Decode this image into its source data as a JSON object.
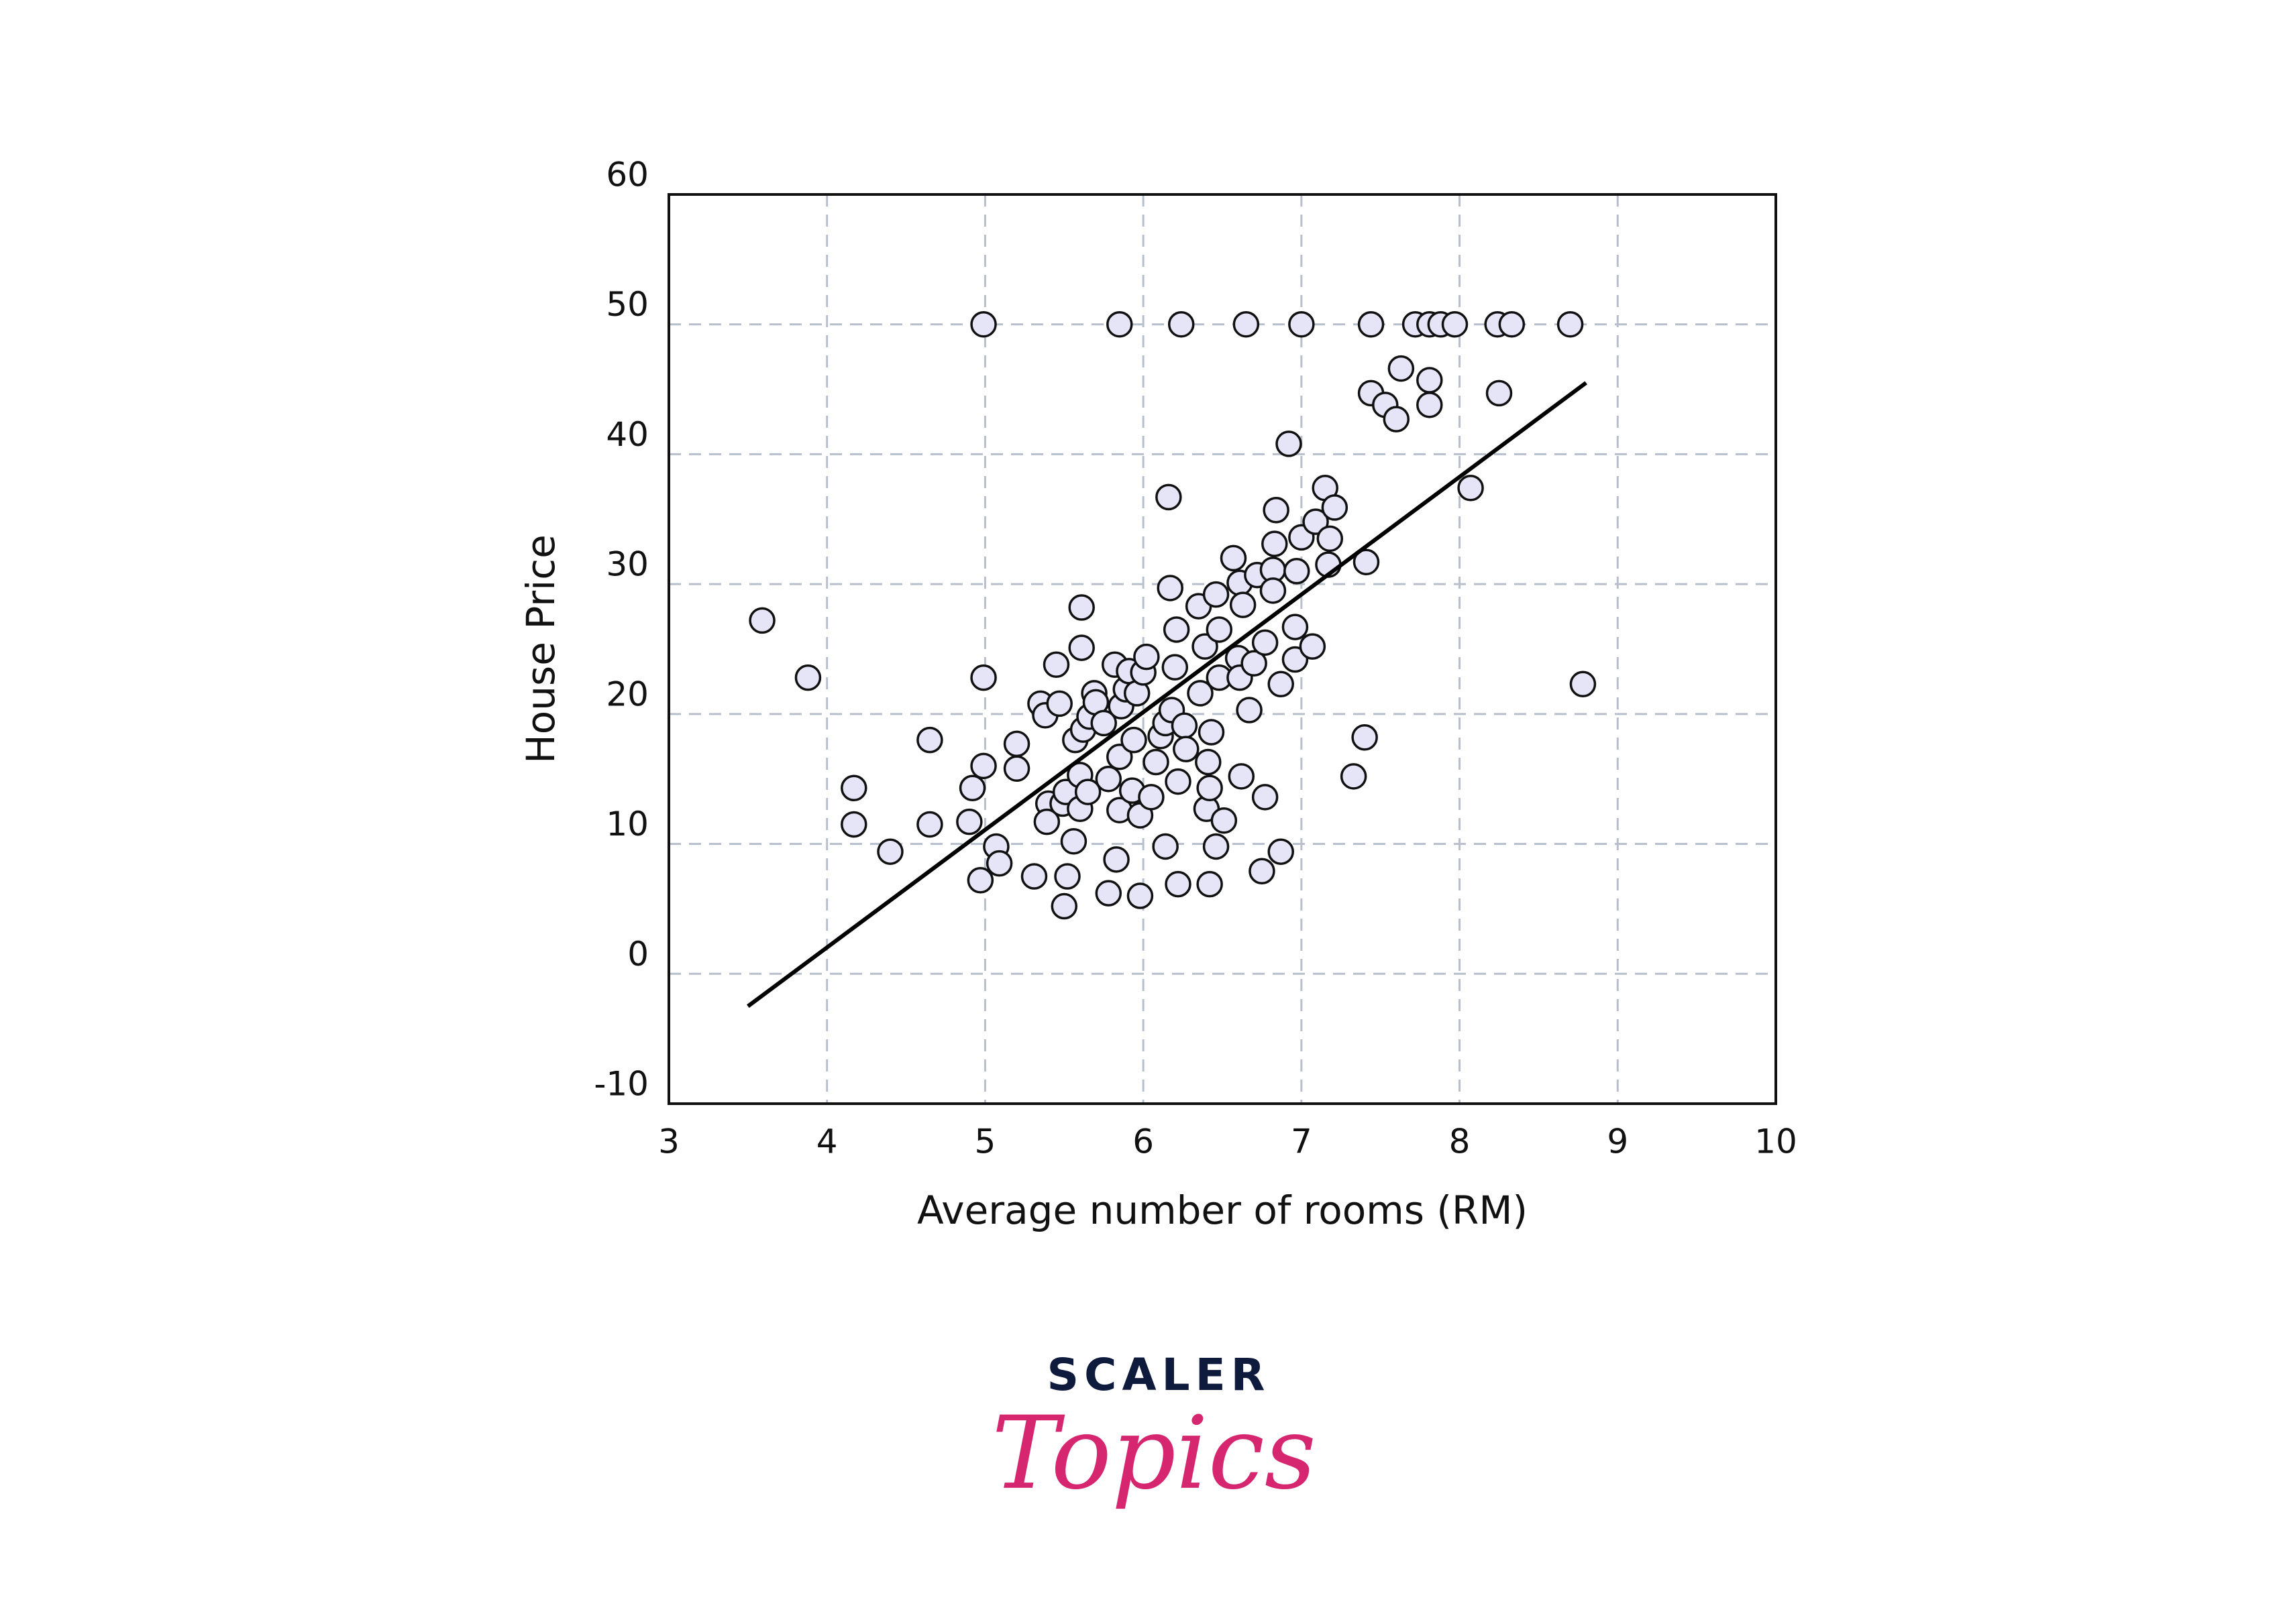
{
  "chart_data": {
    "type": "scatter",
    "xlabel": "Average number of rooms (RM)",
    "ylabel": "House Price",
    "xlim": [
      3,
      10
    ],
    "ylim": [
      -10,
      60
    ],
    "xticks": [
      3,
      4,
      5,
      6,
      7,
      8,
      9,
      10
    ],
    "yticks": [
      -10,
      0,
      10,
      20,
      30,
      40,
      50,
      60
    ],
    "grid": true,
    "series": [
      {
        "type": "scatter",
        "color": "#e6e4f7",
        "x": [
          4.99,
          5.85,
          6.24,
          6.65,
          7.0,
          7.44,
          7.72,
          7.81,
          7.88,
          7.97,
          8.24,
          8.33,
          8.7,
          3.59,
          3.88,
          4.17,
          4.17,
          4.4,
          4.65,
          4.65,
          4.9,
          4.92,
          4.99,
          4.99,
          4.97,
          5.07,
          5.09,
          5.2,
          5.2,
          5.31,
          5.35,
          5.38,
          5.4,
          5.39,
          5.45,
          5.47,
          5.49,
          5.51,
          5.52,
          5.5,
          5.56,
          5.57,
          5.6,
          5.6,
          5.61,
          5.61,
          5.62,
          5.65,
          5.66,
          5.69,
          5.7,
          5.75,
          5.78,
          5.78,
          5.82,
          5.83,
          5.85,
          5.85,
          5.86,
          5.89,
          5.91,
          5.93,
          5.94,
          5.96,
          5.98,
          5.98,
          6.0,
          6.02,
          6.05,
          6.08,
          6.11,
          6.14,
          6.14,
          6.16,
          6.17,
          6.18,
          6.2,
          6.21,
          6.22,
          6.22,
          6.26,
          6.27,
          6.35,
          6.36,
          6.39,
          6.4,
          6.41,
          6.42,
          6.42,
          6.43,
          6.46,
          6.46,
          6.48,
          6.48,
          6.51,
          6.57,
          6.6,
          6.61,
          6.61,
          6.63,
          6.62,
          6.67,
          6.7,
          6.72,
          6.75,
          6.77,
          6.77,
          6.82,
          6.82,
          6.83,
          6.84,
          6.87,
          6.87,
          6.92,
          6.96,
          6.96,
          6.97,
          7.0,
          7.07,
          7.09,
          7.15,
          7.17,
          7.18,
          7.21,
          7.33,
          7.4,
          7.41,
          7.44,
          7.53,
          7.6,
          7.63,
          7.81,
          7.81,
          8.07,
          8.25,
          8.78
        ],
        "values": [
          50,
          50,
          50,
          50,
          50,
          50,
          50,
          50,
          50,
          50,
          50,
          50,
          50,
          27.2,
          22.8,
          14.3,
          11.5,
          9.4,
          18.0,
          11.5,
          11.7,
          14.3,
          22.8,
          16.0,
          7.2,
          9.8,
          8.5,
          17.7,
          15.8,
          7.5,
          20.8,
          19.9,
          13.1,
          11.7,
          23.8,
          20.8,
          13.1,
          14.0,
          7.5,
          5.2,
          10.2,
          18.0,
          12.7,
          15.3,
          25.1,
          28.2,
          18.8,
          14.0,
          19.8,
          21.6,
          20.9,
          19.3,
          15.0,
          6.2,
          23.8,
          8.8,
          16.7,
          12.6,
          20.6,
          21.9,
          23.3,
          14.1,
          18.0,
          21.6,
          12.2,
          6.0,
          23.2,
          24.4,
          13.6,
          16.3,
          18.3,
          19.3,
          9.8,
          36.7,
          29.7,
          20.3,
          23.6,
          26.5,
          14.8,
          6.9,
          19.1,
          17.3,
          28.3,
          21.6,
          25.2,
          12.7,
          16.3,
          14.3,
          6.9,
          18.6,
          29.2,
          9.8,
          22.8,
          26.5,
          11.8,
          32.0,
          24.3,
          22.8,
          30.1,
          28.4,
          15.2,
          20.3,
          23.9,
          30.7,
          7.9,
          25.5,
          13.6,
          31.1,
          29.5,
          33.1,
          35.7,
          22.3,
          9.4,
          40.8,
          24.2,
          26.7,
          31.0,
          33.6,
          25.2,
          34.8,
          37.4,
          31.5,
          33.5,
          35.9,
          15.2,
          18.2,
          31.7,
          44.7,
          43.8,
          42.7,
          46.6,
          45.7,
          43.8,
          37.4,
          44.7,
          22.3
        ]
      },
      {
        "type": "line",
        "color": "#000000",
        "x": [
          3.5,
          8.8
        ],
        "values": [
          -2.5,
          45.5
        ]
      }
    ]
  },
  "logo": {
    "brand": "SCALER",
    "product": "Topics"
  }
}
